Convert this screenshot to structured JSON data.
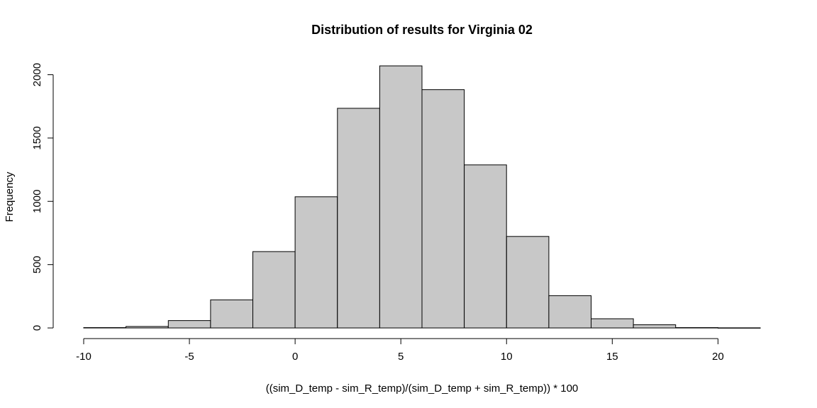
{
  "chart_data": {
    "type": "bar",
    "title": "Distribution of results for Virginia 02",
    "xlabel": "((sim_D_temp - sim_R_temp)/(sim_D_temp + sim_R_temp)) * 100",
    "ylabel": "Frequency",
    "bins": [
      {
        "start": -10,
        "end": -8,
        "count": 3
      },
      {
        "start": -8,
        "end": -6,
        "count": 12
      },
      {
        "start": -6,
        "end": -4,
        "count": 58
      },
      {
        "start": -4,
        "end": -2,
        "count": 222
      },
      {
        "start": -2,
        "end": 0,
        "count": 603
      },
      {
        "start": 0,
        "end": 2,
        "count": 1036
      },
      {
        "start": 2,
        "end": 4,
        "count": 1735
      },
      {
        "start": 4,
        "end": 6,
        "count": 2070
      },
      {
        "start": 6,
        "end": 8,
        "count": 1882
      },
      {
        "start": 8,
        "end": 10,
        "count": 1288
      },
      {
        "start": 10,
        "end": 12,
        "count": 723
      },
      {
        "start": 12,
        "end": 14,
        "count": 255
      },
      {
        "start": 14,
        "end": 16,
        "count": 73
      },
      {
        "start": 16,
        "end": 18,
        "count": 25
      },
      {
        "start": 18,
        "end": 20,
        "count": 3
      },
      {
        "start": 20,
        "end": 22,
        "count": 1
      }
    ],
    "xlim": [
      -10,
      22
    ],
    "ylim": [
      0,
      2070
    ],
    "x_ticks": [
      -10,
      -5,
      0,
      5,
      10,
      15,
      20
    ],
    "y_ticks": [
      0,
      500,
      1000,
      1500,
      2000
    ],
    "grid": false,
    "colors": {
      "bar_fill": "#c8c8c8",
      "bar_stroke": "#000000"
    }
  }
}
